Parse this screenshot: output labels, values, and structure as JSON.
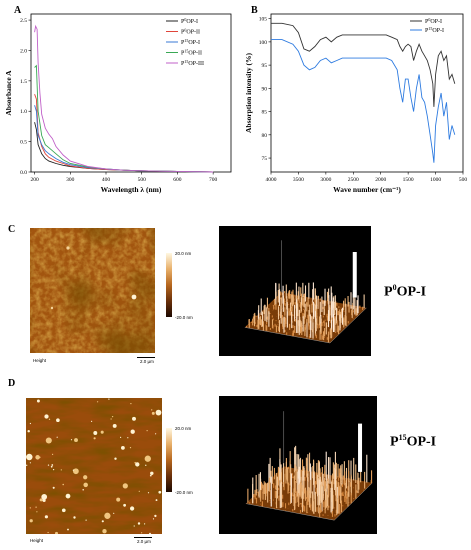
{
  "panel_letters": {
    "a": "A",
    "b": "B",
    "c": "C",
    "d": "D"
  },
  "chart_data": [
    {
      "type": "line",
      "panel": "A",
      "xlabel": "Wavelength λ (nm)",
      "ylabel": "Absorbance A",
      "xlim": [
        190,
        750
      ],
      "ylim": [
        0,
        2.6
      ],
      "xticks": [
        "200",
        "300",
        "400",
        "500",
        "600",
        "700"
      ],
      "yticks": [
        "0.0",
        "0.5",
        "1.0",
        "1.5",
        "2.0",
        "2.5"
      ],
      "legend_position": "top-right",
      "series": [
        {
          "name": "P⁰OP-I",
          "label_base": "P",
          "label_sup": "0",
          "label_rest": "OP-I",
          "color": "#222222",
          "x": [
            200,
            205,
            210,
            220,
            230,
            240,
            260,
            280,
            300,
            350,
            400,
            450,
            500,
            600,
            700
          ],
          "values": [
            0.82,
            0.7,
            0.45,
            0.3,
            0.22,
            0.18,
            0.14,
            0.11,
            0.09,
            0.06,
            0.04,
            0.03,
            0.02,
            0.01,
            0.0
          ]
        },
        {
          "name": "P⁰OP-II",
          "label_base": "P",
          "label_sup": "0",
          "label_rest": "OP-II",
          "color": "#e0453a",
          "x": [
            200,
            205,
            210,
            220,
            230,
            240,
            260,
            280,
            300,
            350,
            400,
            450,
            500,
            600,
            700
          ],
          "values": [
            1.28,
            1.2,
            0.65,
            0.42,
            0.3,
            0.24,
            0.18,
            0.14,
            0.1,
            0.06,
            0.04,
            0.03,
            0.02,
            0.01,
            0.0
          ]
        },
        {
          "name": "P¹⁵OP-I",
          "label_base": "P",
          "label_sup": "15",
          "label_rest": "OP-I",
          "color": "#3a78d6",
          "x": [
            200,
            205,
            210,
            220,
            230,
            240,
            260,
            280,
            300,
            350,
            400,
            450,
            500,
            600,
            700
          ],
          "values": [
            1.1,
            1.0,
            0.6,
            0.45,
            0.35,
            0.3,
            0.22,
            0.16,
            0.12,
            0.07,
            0.05,
            0.03,
            0.02,
            0.01,
            0.0
          ]
        },
        {
          "name": "P¹⁵OP-II",
          "label_base": "P",
          "label_sup": "15",
          "label_rest": "OP-II",
          "color": "#3aa855",
          "x": [
            200,
            205,
            210,
            220,
            230,
            240,
            260,
            280,
            300,
            350,
            400,
            450,
            500,
            600,
            700
          ],
          "values": [
            1.72,
            1.75,
            1.0,
            0.6,
            0.45,
            0.4,
            0.3,
            0.2,
            0.14,
            0.08,
            0.05,
            0.03,
            0.02,
            0.01,
            0.0
          ]
        },
        {
          "name": "P¹⁵OP-III",
          "label_base": "P",
          "label_sup": "15",
          "label_rest": "OP-III",
          "color": "#c060c8",
          "x": [
            200,
            203,
            207,
            210,
            215,
            220,
            230,
            240,
            250,
            260,
            280,
            300,
            350,
            400,
            450,
            500,
            600,
            700
          ],
          "values": [
            2.3,
            2.4,
            2.35,
            1.8,
            1.3,
            0.95,
            0.72,
            0.62,
            0.55,
            0.42,
            0.28,
            0.18,
            0.09,
            0.05,
            0.03,
            0.02,
            0.01,
            0.0
          ]
        }
      ]
    },
    {
      "type": "line",
      "panel": "B",
      "xlabel": "Wave number (cm⁻¹)",
      "ylabel": "Absorption intensity (%)",
      "xlim": [
        4000,
        500
      ],
      "ylim": [
        72,
        106
      ],
      "xticks": [
        "4000",
        "3500",
        "3000",
        "2500",
        "2000",
        "1500",
        "1000",
        "500"
      ],
      "yticks": [
        "75",
        "80",
        "85",
        "90",
        "95",
        "100",
        "105"
      ],
      "legend_position": "top-right",
      "series": [
        {
          "name": "P⁰OP-I",
          "label_base": "P",
          "label_sup": "0",
          "label_rest": "OP-I",
          "color": "#333333",
          "x": [
            4000,
            3800,
            3600,
            3500,
            3400,
            3300,
            3200,
            3100,
            3000,
            2900,
            2800,
            2700,
            2500,
            2300,
            2100,
            1900,
            1800,
            1700,
            1650,
            1600,
            1550,
            1500,
            1450,
            1400,
            1350,
            1300,
            1250,
            1200,
            1150,
            1100,
            1050,
            1030,
            1000,
            950,
            900,
            850,
            800,
            750,
            700,
            650
          ],
          "values": [
            104,
            104,
            103.5,
            102,
            98.5,
            98,
            99,
            100.5,
            101,
            100,
            101,
            101.5,
            101.5,
            101.5,
            101.5,
            101.5,
            101,
            100.5,
            99,
            98,
            99,
            99.5,
            99,
            96,
            98,
            99.5,
            98,
            97,
            96,
            94,
            91,
            86,
            93,
            97,
            98,
            96,
            97,
            92,
            93,
            91
          ]
        },
        {
          "name": "P¹⁵OP-I",
          "label_base": "P",
          "label_sup": "15",
          "label_rest": "OP-I",
          "color": "#2e7be0",
          "x": [
            4000,
            3800,
            3600,
            3500,
            3400,
            3300,
            3200,
            3100,
            3000,
            2900,
            2800,
            2700,
            2500,
            2300,
            2100,
            1900,
            1800,
            1700,
            1650,
            1600,
            1550,
            1500,
            1450,
            1400,
            1350,
            1300,
            1250,
            1200,
            1150,
            1100,
            1050,
            1030,
            1000,
            950,
            900,
            850,
            800,
            750,
            700,
            650
          ],
          "values": [
            100.5,
            100.5,
            99.5,
            98,
            95,
            94,
            94.5,
            96,
            96.5,
            95.5,
            96,
            96.5,
            96.5,
            96.5,
            96.5,
            96.5,
            96,
            94,
            90,
            87,
            92,
            92,
            88,
            85,
            90,
            93,
            88,
            87,
            84,
            80,
            76,
            74,
            82,
            86,
            89,
            84,
            87,
            79,
            82,
            80
          ]
        }
      ]
    }
  ],
  "afm_c": {
    "height_label": "Height",
    "scale_bar_label": "2.0 µm",
    "colorbar_top": "20.0 nm",
    "colorbar_bottom": "-20.0 nm",
    "sample_base": "P",
    "sample_sup": "0",
    "sample_rest": "OP-I"
  },
  "afm_d": {
    "height_label": "Height",
    "scale_bar_label": "2.0 µm",
    "colorbar_top": "20.0 nm",
    "colorbar_bottom": "-20.0 nm",
    "sample_base": "P",
    "sample_sup": "15",
    "sample_rest": "OP-I"
  }
}
